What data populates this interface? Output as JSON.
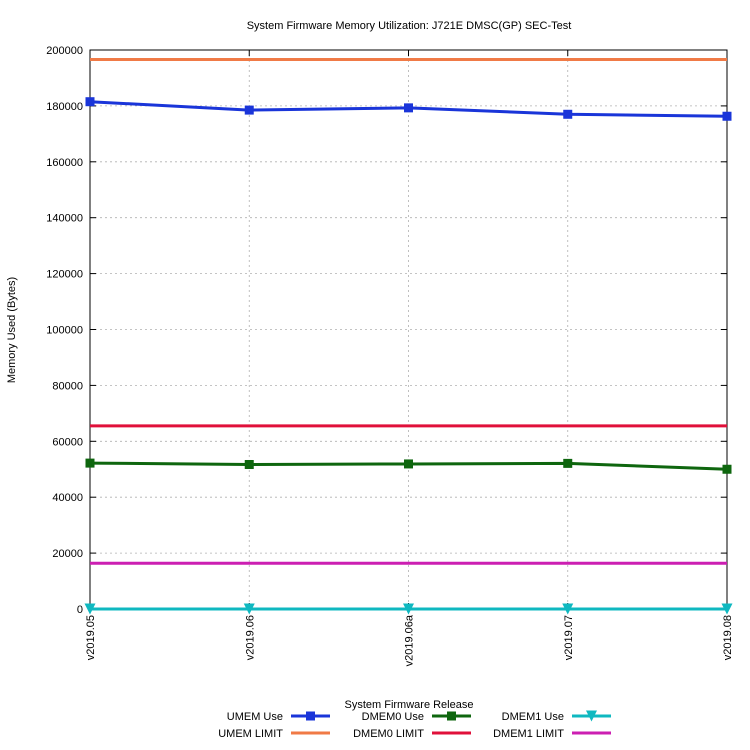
{
  "chart_data": {
    "type": "line",
    "title": "System Firmware Memory Utilization: J721E DMSC(GP) SEC-Test",
    "xlabel": "System Firmware Release",
    "ylabel": "Memory Used (Bytes)",
    "categories": [
      "v2019.05",
      "v2019.06",
      "v2019.06a",
      "v2019.07",
      "v2019.08"
    ],
    "ylim": [
      0,
      200000
    ],
    "yticks": [
      "0",
      "20000",
      "40000",
      "60000",
      "80000",
      "100000",
      "120000",
      "140000",
      "160000",
      "180000",
      "200000"
    ],
    "grid": true,
    "legend_position": "bottom-center",
    "series": [
      {
        "name": "UMEM Use",
        "values": [
          181500,
          178500,
          179300,
          177000,
          176300
        ],
        "color": "#1a35d9",
        "marker": "square"
      },
      {
        "name": "UMEM LIMIT",
        "values": [
          196608,
          196608,
          196608,
          196608,
          196608
        ],
        "color": "#f07a46",
        "marker": "none"
      },
      {
        "name": "DMEM0 Use",
        "values": [
          52200,
          51700,
          51900,
          52100,
          50000
        ],
        "color": "#0e660e",
        "marker": "square"
      },
      {
        "name": "DMEM0 LIMIT",
        "values": [
          65536,
          65536,
          65536,
          65536,
          65536
        ],
        "color": "#e0103a",
        "marker": "none"
      },
      {
        "name": "DMEM1 Use",
        "values": [
          0,
          0,
          0,
          0,
          0
        ],
        "color": "#0fb8c0",
        "marker": "triangle-down"
      },
      {
        "name": "DMEM1 LIMIT",
        "values": [
          16384,
          16384,
          16384,
          16384,
          16384
        ],
        "color": "#cc1fb2",
        "marker": "none"
      }
    ]
  }
}
